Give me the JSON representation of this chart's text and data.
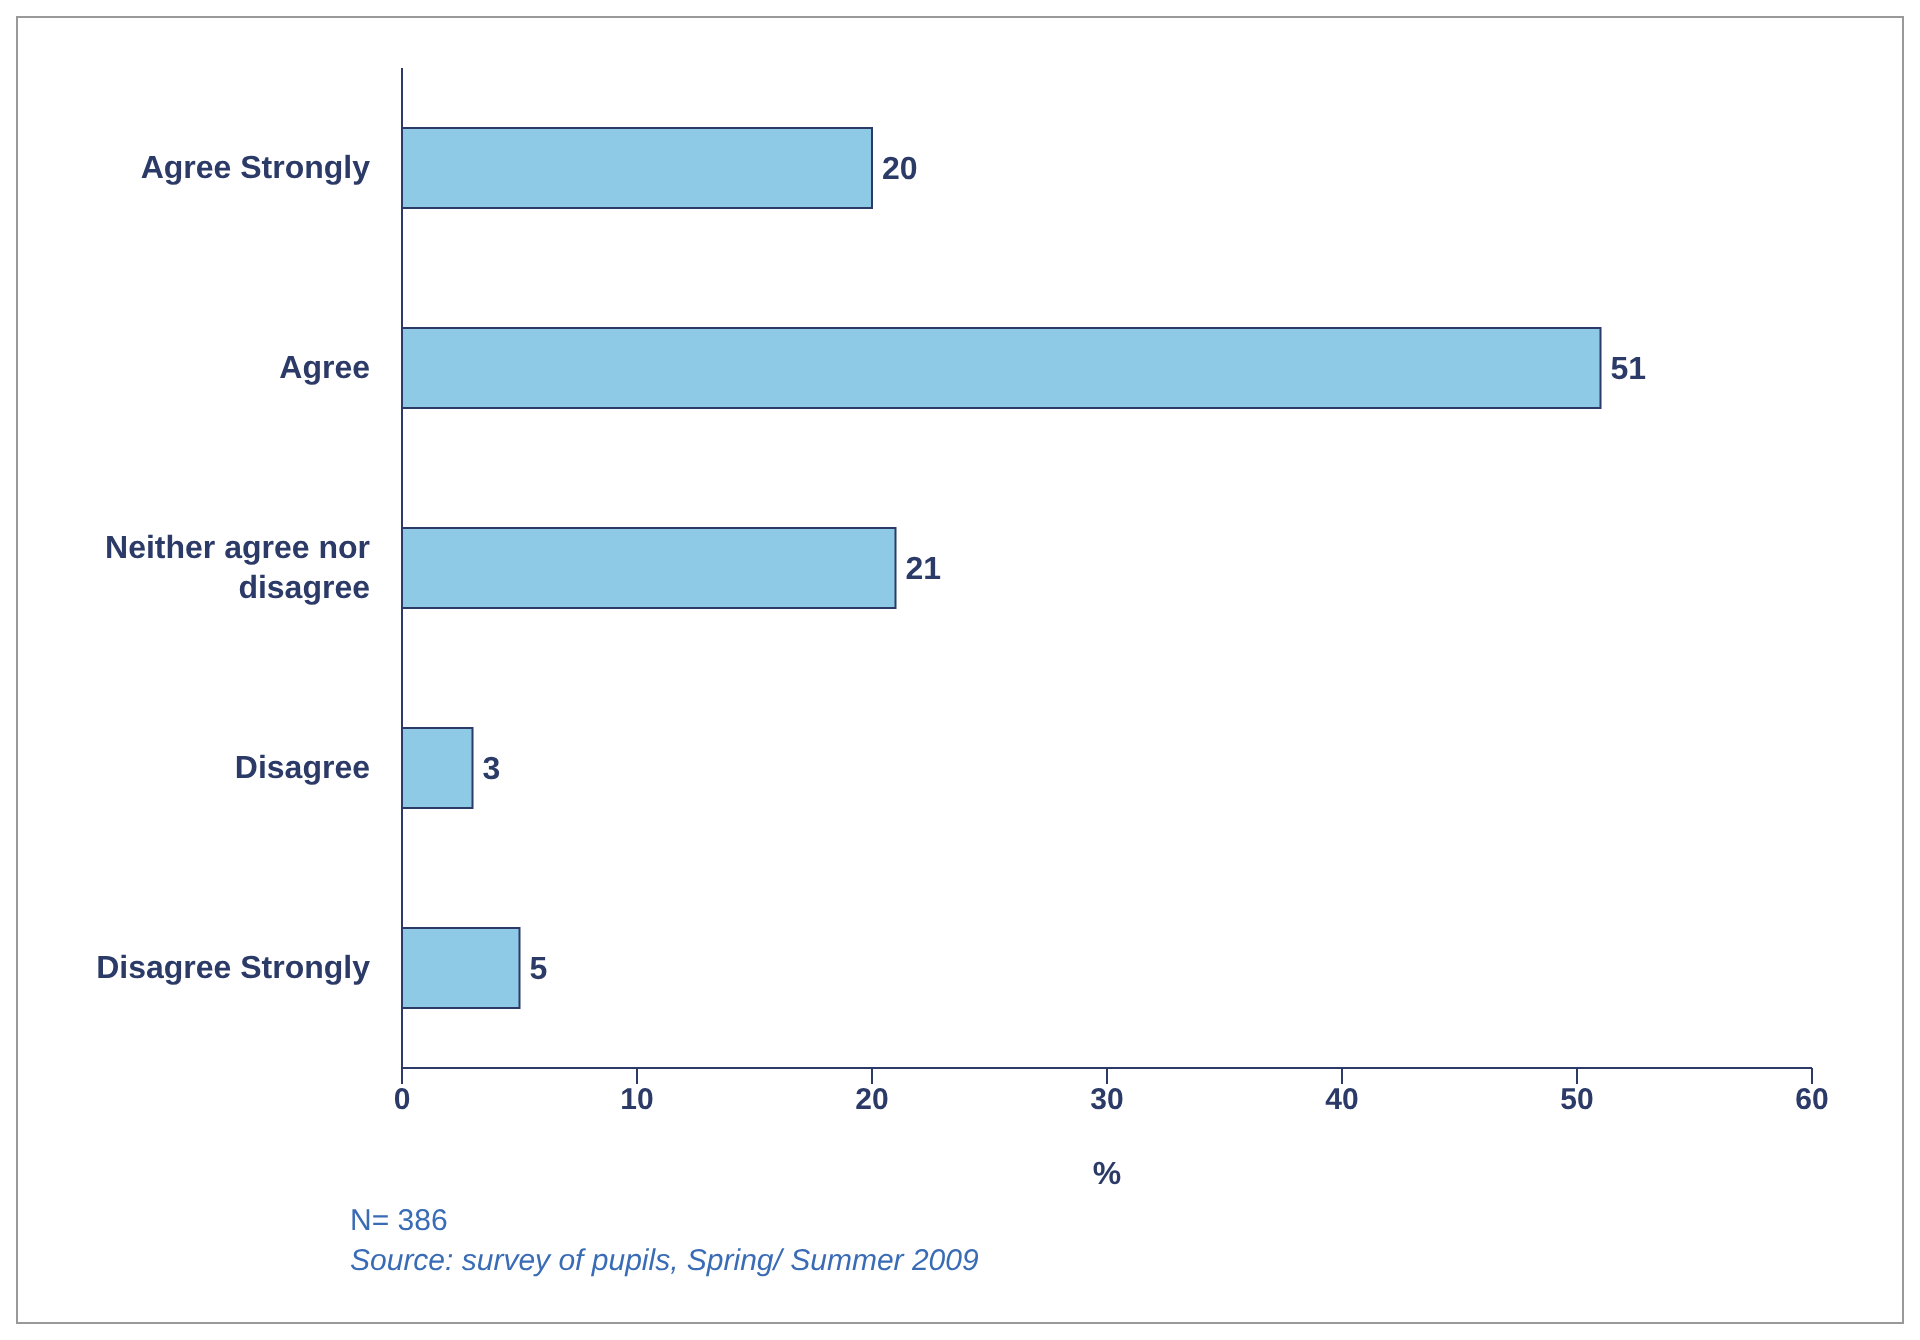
{
  "chart_data": {
    "type": "bar",
    "orientation": "horizontal",
    "categories": [
      "Agree Strongly",
      "Agree",
      "Neither agree nor disagree",
      "Disagree",
      "Disagree Strongly"
    ],
    "values": [
      20,
      51,
      21,
      3,
      5
    ],
    "color": "#8ecae6",
    "xlabel": "%",
    "xlim": [
      0,
      60
    ],
    "xticks": [
      0,
      10,
      20,
      30,
      40,
      50,
      60
    ],
    "data_labels": true,
    "grid": false,
    "legend": false,
    "annotations": [
      "N= 386",
      "Source: survey of pupils, Spring/ Summer 2009"
    ]
  }
}
